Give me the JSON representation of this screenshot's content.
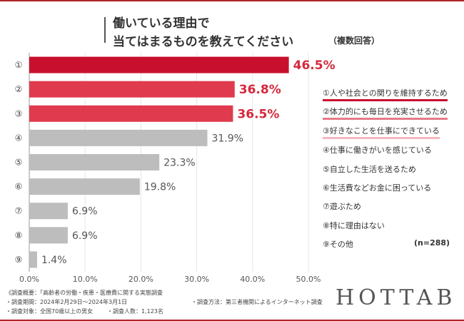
{
  "title": {
    "line1": "働いている理由で",
    "line2": "当てはまるものを教えてください",
    "note": "（複数回答）"
  },
  "colors": {
    "frame": "#b0232a",
    "top_bar": "#c8102e",
    "highlight_bar": "#e03a4e",
    "other_bar": "#bdbdbd",
    "top_label": "#d6283b",
    "other_label": "#555555"
  },
  "chart_data": {
    "type": "bar",
    "orientation": "horizontal",
    "categories": [
      "①",
      "②",
      "③",
      "④",
      "⑤",
      "⑥",
      "⑦",
      "⑧",
      "⑨"
    ],
    "values": [
      46.5,
      36.8,
      36.5,
      31.9,
      23.3,
      19.8,
      6.9,
      6.9,
      1.4
    ],
    "value_labels": [
      "46.5%",
      "36.8%",
      "36.5%",
      "31.9%",
      "23.3%",
      "19.8%",
      "6.9%",
      "6.9%",
      "1.4%"
    ],
    "xlim": [
      0,
      50
    ],
    "x_ticks": [
      0,
      10,
      20,
      30,
      40,
      50
    ],
    "x_tick_labels": [
      "0.0%",
      "10.0%",
      "20.0%",
      "30.0%",
      "40.0%",
      "50.0%"
    ],
    "title": "働いている理由で当てはまるものを教えてください",
    "xlabel": "",
    "ylabel": "",
    "grid": true
  },
  "legend": {
    "items": [
      "①人や社会との関りを維持するため",
      "②体力的にも毎日を充実させるため",
      "③好きなことを仕事にできている",
      "④仕事に働きがいを感じている",
      "⑤自立した生活を送るため",
      "⑥生活費などお金に困っている",
      "⑦遊ぶため",
      "⑧特に理由はない",
      "⑨その他"
    ],
    "sample_size": "(n=288)"
  },
  "footnotes": {
    "overview": "《調査概要：「高齢者の労働・疾患・医療費に関する実態調査",
    "period": "・調査期間：2024年2月29日〜2024年3月1日",
    "method": "・調査方法：第三者機関によるインターネット調査",
    "target": "・調査対象：全国70歳以上の男女",
    "respondents": "・調査人数：1,123名"
  },
  "brand": "HOTTAB"
}
